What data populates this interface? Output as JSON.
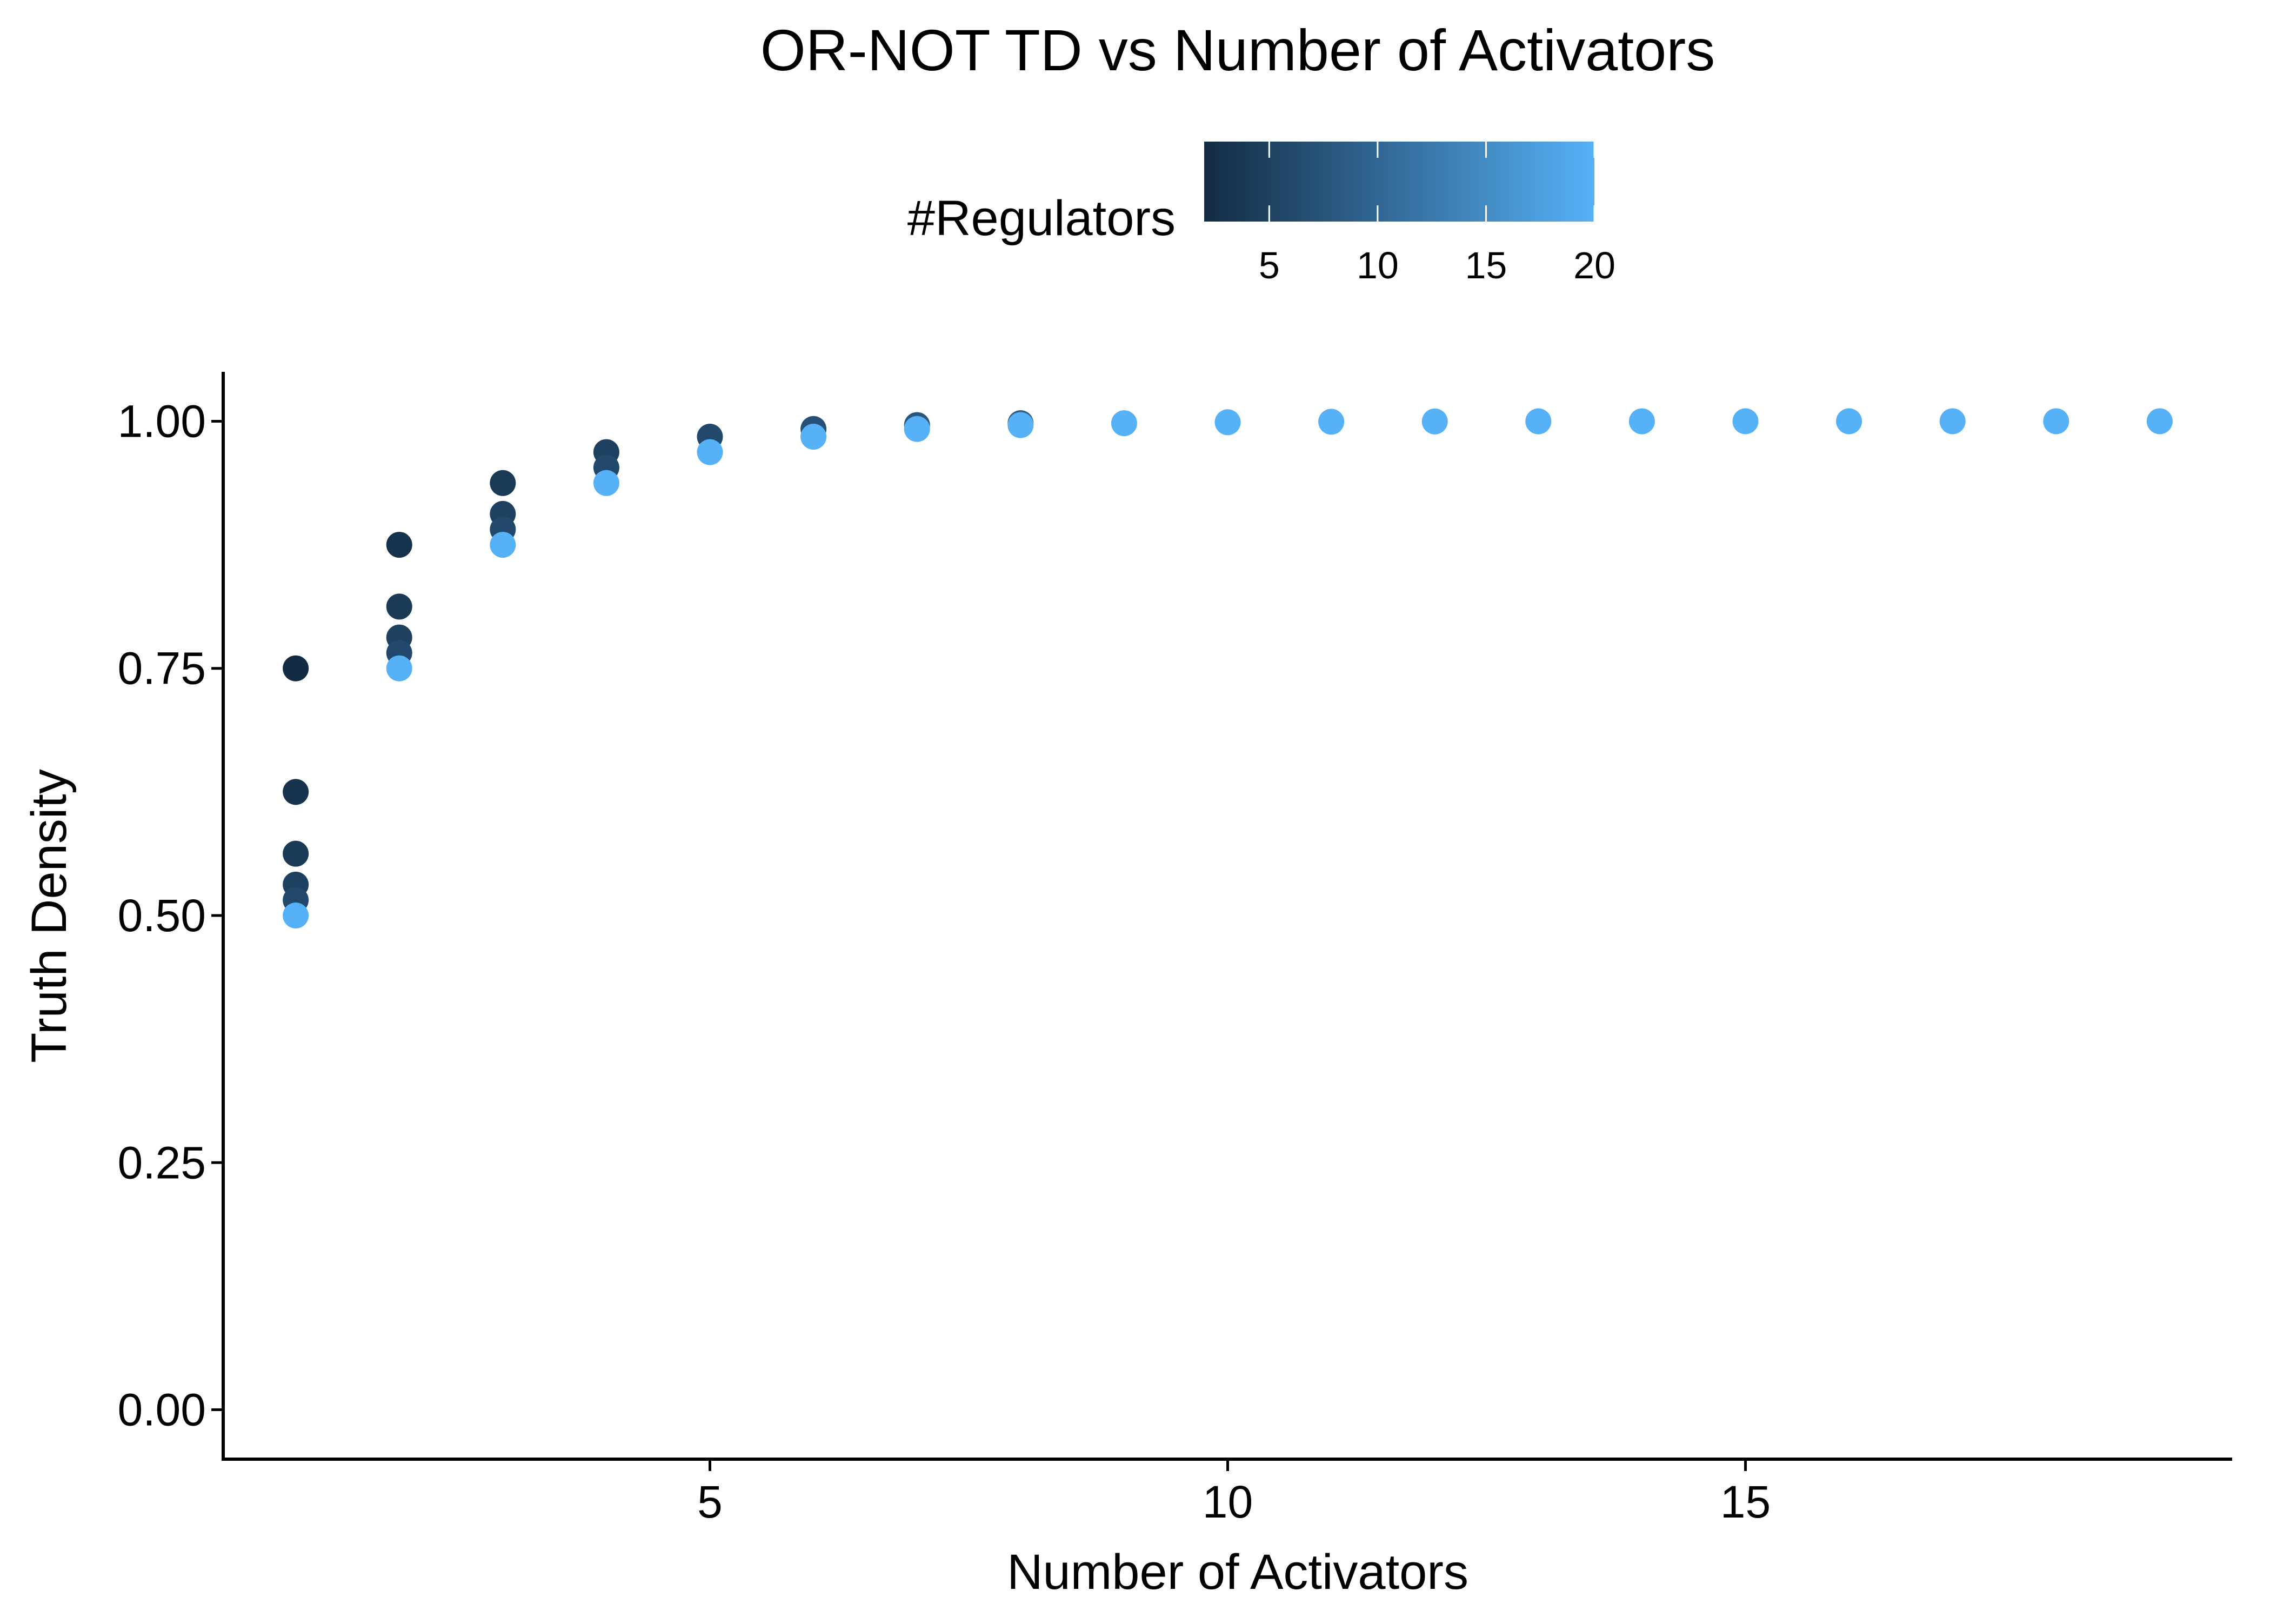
{
  "chart_data": {
    "type": "scatter",
    "title": "OR-NOT TD vs Number of Activators",
    "xlabel": "Number of Activators",
    "ylabel": "Truth Density",
    "xlim": [
      0.3,
      19.7
    ],
    "ylim": [
      -0.05,
      1.05
    ],
    "x_ticks": [
      5,
      10,
      15
    ],
    "y_ticks": [
      0.0,
      0.25,
      0.5,
      0.75,
      1.0
    ],
    "y_tick_labels": [
      "0.00",
      "0.25",
      "0.50",
      "0.75",
      "1.00"
    ],
    "grid": false,
    "legend": {
      "title": "#Regulators",
      "type": "colorbar",
      "position": "top",
      "range": [
        2,
        20
      ],
      "ticks": [
        5,
        10,
        15,
        20
      ],
      "color_low": "#132B43",
      "color_high": "#56B1F7"
    },
    "point_color_variable": "#Regulators",
    "points": [
      {
        "x": 1,
        "y": 0.75,
        "regulators": 2
      },
      {
        "x": 1,
        "y": 0.625,
        "regulators": 3
      },
      {
        "x": 1,
        "y": 0.5625,
        "regulators": 4
      },
      {
        "x": 1,
        "y": 0.53125,
        "regulators": 5
      },
      {
        "x": 1,
        "y": 0.515625,
        "regulators": 6
      },
      {
        "x": 1,
        "y": 0.5,
        "regulators": 20
      },
      {
        "x": 2,
        "y": 0.875,
        "regulators": 3
      },
      {
        "x": 2,
        "y": 0.8125,
        "regulators": 4
      },
      {
        "x": 2,
        "y": 0.78125,
        "regulators": 5
      },
      {
        "x": 2,
        "y": 0.765625,
        "regulators": 6
      },
      {
        "x": 2,
        "y": 0.75,
        "regulators": 20
      },
      {
        "x": 3,
        "y": 0.9375,
        "regulators": 4
      },
      {
        "x": 3,
        "y": 0.90625,
        "regulators": 5
      },
      {
        "x": 3,
        "y": 0.890625,
        "regulators": 6
      },
      {
        "x": 3,
        "y": 0.875,
        "regulators": 20
      },
      {
        "x": 4,
        "y": 0.96875,
        "regulators": 5
      },
      {
        "x": 4,
        "y": 0.953125,
        "regulators": 6
      },
      {
        "x": 4,
        "y": 0.9375,
        "regulators": 20
      },
      {
        "x": 5,
        "y": 0.984375,
        "regulators": 6
      },
      {
        "x": 5,
        "y": 0.96875,
        "regulators": 20
      },
      {
        "x": 6,
        "y": 0.9921875,
        "regulators": 7
      },
      {
        "x": 6,
        "y": 0.984375,
        "regulators": 20
      },
      {
        "x": 7,
        "y": 0.99609375,
        "regulators": 8
      },
      {
        "x": 7,
        "y": 0.9921875,
        "regulators": 20
      },
      {
        "x": 8,
        "y": 0.998046875,
        "regulators": 9
      },
      {
        "x": 8,
        "y": 0.99609375,
        "regulators": 20
      },
      {
        "x": 9,
        "y": 0.998,
        "regulators": 20
      },
      {
        "x": 10,
        "y": 0.999,
        "regulators": 20
      },
      {
        "x": 11,
        "y": 0.9995,
        "regulators": 20
      },
      {
        "x": 12,
        "y": 0.9998,
        "regulators": 20
      },
      {
        "x": 13,
        "y": 0.9999,
        "regulators": 20
      },
      {
        "x": 14,
        "y": 0.99994,
        "regulators": 20
      },
      {
        "x": 15,
        "y": 0.99997,
        "regulators": 20
      },
      {
        "x": 16,
        "y": 0.99998,
        "regulators": 20
      },
      {
        "x": 17,
        "y": 0.99999,
        "regulators": 20
      },
      {
        "x": 18,
        "y": 0.999996,
        "regulators": 20
      },
      {
        "x": 19,
        "y": 0.999998,
        "regulators": 20
      }
    ]
  }
}
